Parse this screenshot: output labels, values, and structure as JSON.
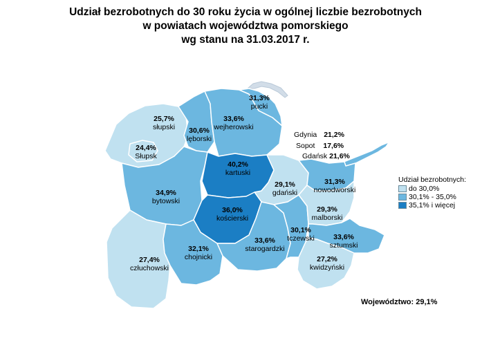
{
  "title_lines": [
    "Udział bezrobotnych do 30 roku życia w ogólnej liczbie bezrobotnych",
    "w powiatach województwa pomorskiego",
    "wg stanu na 31.03.2017 r."
  ],
  "colors": {
    "low": "#c0e1f0",
    "mid": "#6cb7e0",
    "high": "#1b7ec4",
    "border": "#ffffff",
    "sea_coast": "#d2dde8"
  },
  "regions": {
    "pucki": {
      "name": "pucki",
      "value": "31,3%",
      "class": "mid"
    },
    "wejherowski": {
      "name": "wejherowski",
      "value": "33,6%",
      "class": "mid"
    },
    "leborski": {
      "name": "lęborski",
      "value": "30,6%",
      "class": "mid"
    },
    "slupski": {
      "name": "słupski",
      "value": "25,7%",
      "class": "low"
    },
    "slupsk": {
      "name": "Słupsk",
      "value": "24,4%",
      "class": "low"
    },
    "kartuski": {
      "name": "kartuski",
      "value": "40,2%",
      "class": "high"
    },
    "bytowski": {
      "name": "bytowski",
      "value": "34,9%",
      "class": "mid"
    },
    "koscierski": {
      "name": "kościerski",
      "value": "36,0%",
      "class": "high"
    },
    "czluchowski": {
      "name": "człuchowski",
      "value": "27,4%",
      "class": "low"
    },
    "chojnicki": {
      "name": "chojnicki",
      "value": "32,1%",
      "class": "mid"
    },
    "starogardzki": {
      "name": "starogardzki",
      "value": "33,6%",
      "class": "mid"
    },
    "tczewski": {
      "name": "tczewski",
      "value": "30,1%",
      "class": "mid"
    },
    "gdanski": {
      "name": "gdański",
      "value": "29,1%",
      "class": "low"
    },
    "nowodworski": {
      "name": "nowodworski",
      "value": "31,3%",
      "class": "mid"
    },
    "malborski": {
      "name": "malborski",
      "value": "29,3%",
      "class": "low"
    },
    "sztumski": {
      "name": "sztumski",
      "value": "33,6%",
      "class": "mid"
    },
    "kwidzynski": {
      "name": "kwidzyński",
      "value": "27,2%",
      "class": "low"
    }
  },
  "cities": [
    {
      "name": "Gdynia",
      "value": "21,2%"
    },
    {
      "name": "Sopot",
      "value": "17,6%"
    },
    {
      "name": "Gdańsk",
      "value": "21,6%"
    }
  ],
  "legend": {
    "title": "Udział bezrobotnych:",
    "items": [
      {
        "label": "do 30,0%",
        "class": "low"
      },
      {
        "label": "30,1% - 35,0%",
        "class": "mid"
      },
      {
        "label": "35,1% i więcej",
        "class": "high"
      }
    ]
  },
  "summary": "Województwo: 29,1%"
}
